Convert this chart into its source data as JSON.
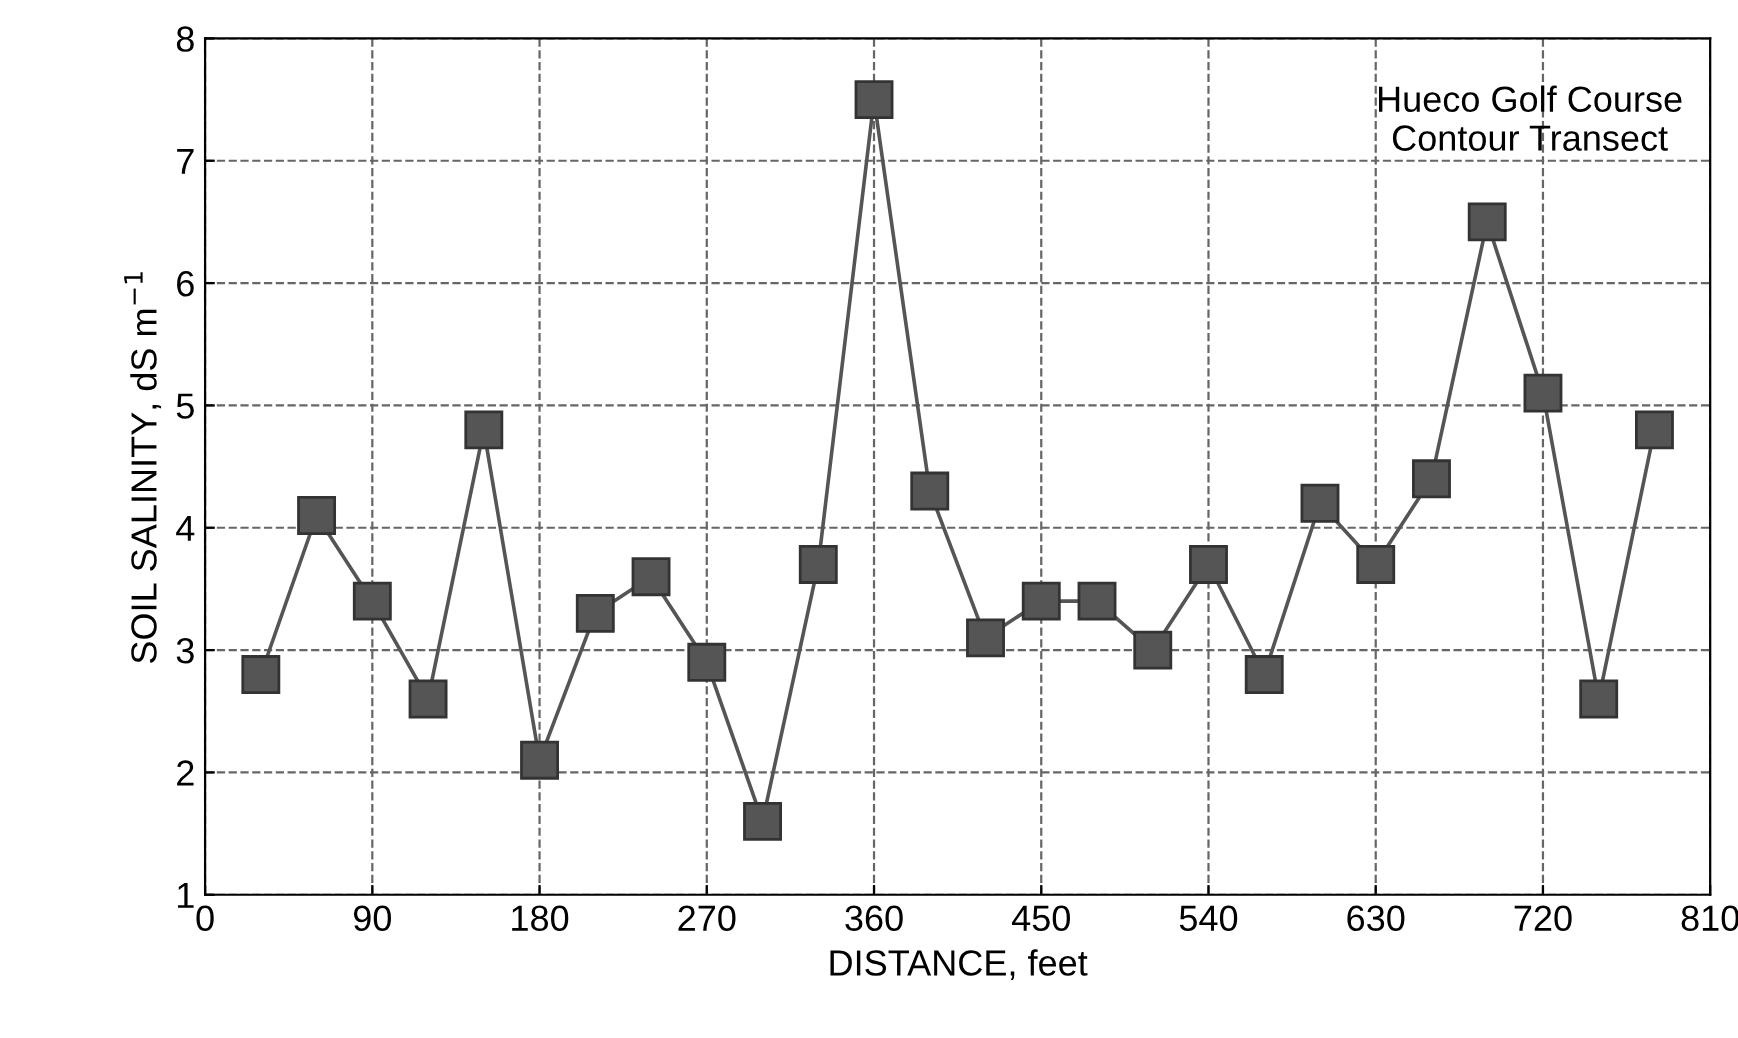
{
  "chart_data": {
    "type": "line",
    "xlabel": "DISTANCE, feet",
    "ylabel": "SOIL SALINITY, dS m$^{−1}$",
    "annotations": [
      "Hueco Golf Course\nContour Transect"
    ],
    "x": [
      30,
      60,
      90,
      120,
      150,
      180,
      210,
      240,
      270,
      300,
      330,
      360,
      390,
      420,
      450,
      480,
      510,
      540,
      570,
      600,
      630,
      660,
      690,
      720,
      750,
      780
    ],
    "series": [
      {
        "color": "#555555",
        "values": [
          2.8,
          4.1,
          3.4,
          2.6,
          4.8,
          2.1,
          3.3,
          3.6,
          2.9,
          1.6,
          3.7,
          7.5,
          4.3,
          3.1,
          3.4,
          3.4,
          3.0,
          3.7,
          2.8,
          4.2,
          3.7,
          4.4,
          6.5,
          5.1,
          2.6,
          4.8
        ]
      }
    ],
    "xlim": [
      0,
      810
    ],
    "xticks": [
      0,
      90,
      180,
      270,
      360,
      450,
      540,
      630,
      720,
      810
    ],
    "ylim": [
      1,
      8
    ],
    "yticks": [
      1,
      2,
      3,
      4,
      5,
      6,
      7,
      8
    ],
    "grid": true,
    "marker": "square",
    "line_style": "solid",
    "legend": false
  }
}
